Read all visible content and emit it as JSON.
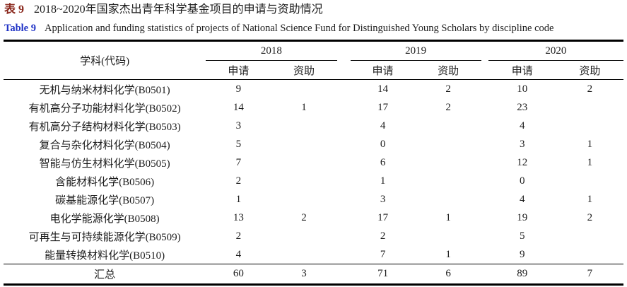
{
  "caption": {
    "zh_label": "表 9",
    "zh_title": "2018~2020年国家杰出青年科学基金项目的申请与资助情况",
    "en_label": "Table 9",
    "en_title": "Application and funding statistics of projects of National Science Fund for Distinguished Young Scholars by discipline code"
  },
  "colors": {
    "zh_caption_label": "#8b2a1f",
    "en_caption_label": "#2033c6",
    "body_text": "#1c1c1c",
    "rules": "#000000"
  },
  "table": {
    "discipline_header": "学科(代码)",
    "year_groups": [
      {
        "year": "2018",
        "sub": [
          "申请",
          "资助"
        ]
      },
      {
        "year": "2019",
        "sub": [
          "申请",
          "资助"
        ]
      },
      {
        "year": "2020",
        "sub": [
          "申请",
          "资助"
        ]
      }
    ],
    "rows": [
      {
        "label": "无机与纳米材料化学(B0501)",
        "values": [
          "9",
          "",
          "14",
          "2",
          "10",
          "2"
        ]
      },
      {
        "label": "有机高分子功能材料化学(B0502)",
        "values": [
          "14",
          "1",
          "17",
          "2",
          "23",
          ""
        ]
      },
      {
        "label": "有机高分子结构材料化学(B0503)",
        "values": [
          "3",
          "",
          "4",
          "",
          "4",
          ""
        ]
      },
      {
        "label": "复合与杂化材料化学(B0504)",
        "values": [
          "5",
          "",
          "0",
          "",
          "3",
          "1"
        ]
      },
      {
        "label": "智能与仿生材料化学(B0505)",
        "values": [
          "7",
          "",
          "6",
          "",
          "12",
          "1"
        ]
      },
      {
        "label": "含能材料化学(B0506)",
        "values": [
          "2",
          "",
          "1",
          "",
          "0",
          ""
        ]
      },
      {
        "label": "碳基能源化学(B0507)",
        "values": [
          "1",
          "",
          "3",
          "",
          "4",
          "1"
        ]
      },
      {
        "label": "电化学能源化学(B0508)",
        "values": [
          "13",
          "2",
          "17",
          "1",
          "19",
          "2"
        ]
      },
      {
        "label": "可再生与可持续能源化学(B0509)",
        "values": [
          "2",
          "",
          "2",
          "",
          "5",
          ""
        ]
      },
      {
        "label": "能量转换材料化学(B0510)",
        "values": [
          "4",
          "",
          "7",
          "1",
          "9",
          ""
        ]
      }
    ],
    "total_row": {
      "label": "汇总",
      "values": [
        "60",
        "3",
        "71",
        "6",
        "89",
        "7"
      ]
    }
  }
}
